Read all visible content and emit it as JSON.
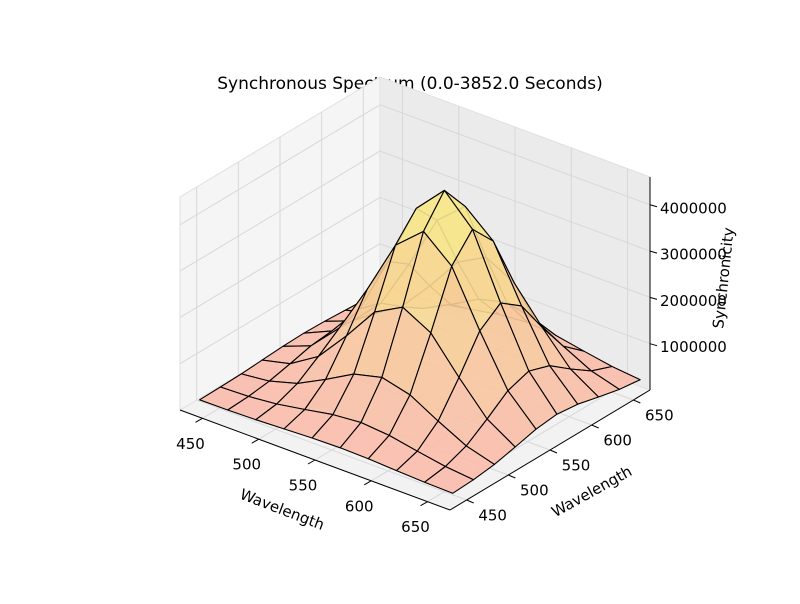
{
  "chart_data": {
    "type": "surface",
    "title": "Synchronous Spectrum (0.0-3852.0 Seconds)",
    "xlabel": "Wavelength",
    "ylabel": "Wavelength",
    "zlabel": "Synchronicity",
    "x": [
      440,
      465,
      490,
      515,
      540,
      565,
      590,
      615,
      640,
      665
    ],
    "y": [
      440,
      465,
      490,
      515,
      540,
      565,
      590,
      615,
      640,
      665
    ],
    "z": [
      [
        202000,
        208000,
        222000,
        249000,
        277000,
        290000,
        277000,
        249000,
        222000,
        208000
      ],
      [
        208000,
        231000,
        291000,
        397000,
        513000,
        566000,
        513000,
        397000,
        291000,
        231000
      ],
      [
        222000,
        291000,
        467000,
        777000,
        1118000,
        1271000,
        1118000,
        777000,
        467000,
        291000
      ],
      [
        249000,
        397000,
        777000,
        1449000,
        2186000,
        2518000,
        2186000,
        1449000,
        777000,
        397000
      ],
      [
        277000,
        513000,
        1118000,
        2186000,
        3358000,
        3885000,
        3358000,
        2186000,
        1118000,
        513000
      ],
      [
        290000,
        566000,
        1271000,
        2518000,
        3885000,
        4500000,
        3885000,
        2518000,
        1271000,
        566000
      ],
      [
        277000,
        513000,
        1118000,
        2186000,
        3358000,
        3885000,
        3358000,
        2186000,
        1118000,
        513000
      ],
      [
        249000,
        397000,
        777000,
        1449000,
        2186000,
        2518000,
        2186000,
        1449000,
        777000,
        397000
      ],
      [
        222000,
        291000,
        467000,
        777000,
        1118000,
        1271000,
        1118000,
        777000,
        467000,
        291000
      ],
      [
        208000,
        231000,
        291000,
        397000,
        513000,
        566000,
        513000,
        397000,
        291000,
        231000
      ]
    ],
    "xlim": [
      430,
      670
    ],
    "ylim": [
      430,
      670
    ],
    "zlim": [
      0,
      4600000
    ],
    "xticks": [
      450,
      500,
      550,
      600,
      650
    ],
    "yticks": [
      450,
      500,
      550,
      600,
      650
    ],
    "zticks": [
      1000000,
      2000000,
      3000000,
      4000000
    ],
    "grid": true
  }
}
